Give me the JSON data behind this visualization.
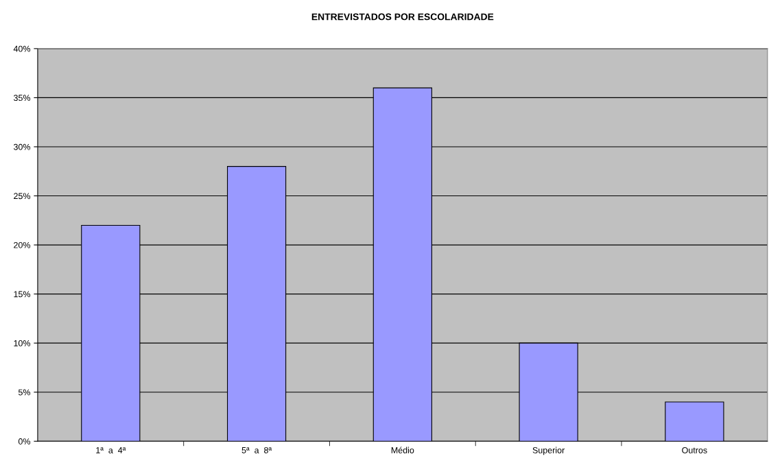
{
  "chart_data": {
    "type": "bar",
    "title": "ENTREVISTADOS POR ESCOLARIDADE",
    "categories": [
      "1ª  a  4ª",
      "5ª  a  8ª",
      "Médio",
      "Superior",
      "Outros"
    ],
    "values": [
      22,
      28,
      36,
      10,
      4
    ],
    "color": "#9999ff",
    "ylim": [
      0,
      40
    ],
    "yticks": [
      {
        "value": 0,
        "label": "0%"
      },
      {
        "value": 5,
        "label": "5%"
      },
      {
        "value": 10,
        "label": "10%"
      },
      {
        "value": 15,
        "label": "15%"
      },
      {
        "value": 20,
        "label": "20%"
      },
      {
        "value": 25,
        "label": "25%"
      },
      {
        "value": 30,
        "label": "30%"
      },
      {
        "value": 35,
        "label": "35%"
      },
      {
        "value": 40,
        "label": "40%"
      }
    ],
    "grid": "y"
  }
}
